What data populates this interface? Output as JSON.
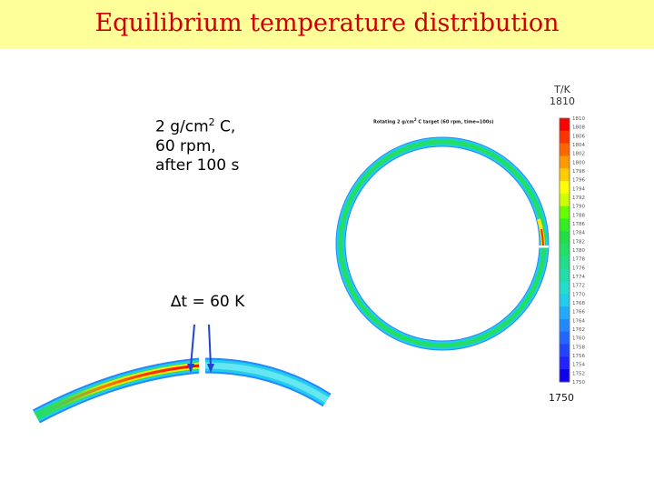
{
  "slide": {
    "title": "Equilibrium temperature distribution",
    "params": {
      "line1_prefix": "2 g/cm",
      "line1_sup": "2",
      "line1_suffix": " C,",
      "line2": "60 rpm,",
      "line3": "after 100 s"
    },
    "delta_label": "∆t = 60 K"
  },
  "simulation": {
    "title_prefix": "Rotating 2 g/cm",
    "title_sup": "2",
    "title_suffix": " C target (60 rpm, time=100s)"
  },
  "colorbar": {
    "unit_label": "T/K",
    "max_label": "1810",
    "min_label": "1750",
    "ticks": [
      "1810",
      "1808",
      "1806",
      "1804",
      "1802",
      "1800",
      "1798",
      "1796",
      "1794",
      "1792",
      "1790",
      "1788",
      "1786",
      "1784",
      "1782",
      "1780",
      "1778",
      "1776",
      "1774",
      "1772",
      "1770",
      "1768",
      "1766",
      "1764",
      "1762",
      "1760",
      "1758",
      "1756",
      "1754",
      "1752",
      "1750"
    ],
    "colors": [
      "#ff0000",
      "#ff3300",
      "#ff6600",
      "#ff9900",
      "#ffcc00",
      "#ffff00",
      "#ccff00",
      "#66ff00",
      "#33ee22",
      "#22dd44",
      "#22dd66",
      "#22dd88",
      "#22ddaa",
      "#22ddcc",
      "#22ccee",
      "#22aaff",
      "#2288ff",
      "#2266ff",
      "#2244ff",
      "#2222ff",
      "#1100ee"
    ]
  },
  "colors": {
    "banner": "#ffff99",
    "title": "#cc0000",
    "ring_green": "#22dd66",
    "ring_cyan": "#22ccee",
    "ring_blue": "#2288ff",
    "hot_red": "#ff0000",
    "hot_yellow": "#ffee00",
    "pointer": "#2244cc"
  }
}
